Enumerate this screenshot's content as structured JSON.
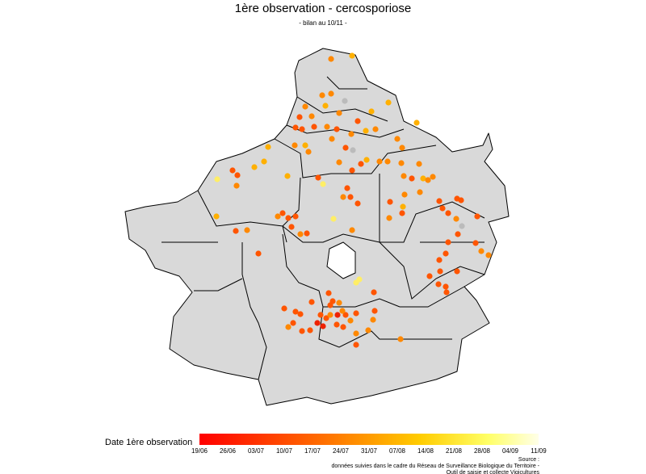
{
  "header": {
    "title": "1ère observation - cercosporiose",
    "subtitle": "- bilan au 10/11 -"
  },
  "legend": {
    "label": "Date 1ère observation",
    "ticks": [
      "19/06",
      "26/06",
      "03/07",
      "10/07",
      "17/07",
      "24/07",
      "31/07",
      "07/08",
      "14/08",
      "21/08",
      "28/08",
      "04/09",
      "11/09"
    ]
  },
  "source": [
    "Source :",
    "données suivies dans le cadre du Réseau de Surveillance Biologique du Territoire -",
    "Outil de saisie et collecte Vigicultures"
  ]
}
